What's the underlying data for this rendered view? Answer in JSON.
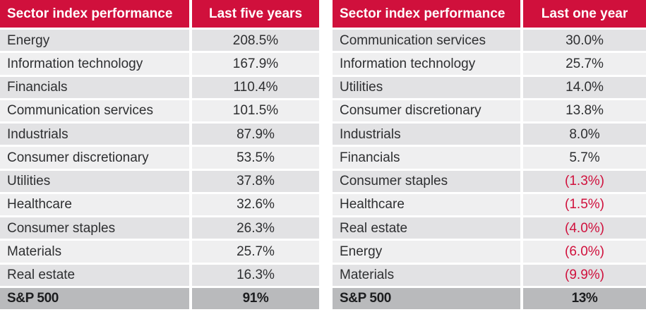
{
  "colors": {
    "header_red": "#d0103c",
    "negative_red": "#d0103c",
    "row_dark": "#e2e2e4",
    "row_light": "#efeff0",
    "footer_gray": "#b9babc",
    "text": "#2e2f31"
  },
  "tables": [
    {
      "id": "last-five-years",
      "header": {
        "label": "Sector index performance",
        "period": "Last five years"
      },
      "rows": [
        {
          "name": "Energy",
          "value": "208.5%"
        },
        {
          "name": "Information technology",
          "value": "167.9%"
        },
        {
          "name": "Financials",
          "value": "110.4%"
        },
        {
          "name": "Communication services",
          "value": "101.5%"
        },
        {
          "name": "Industrials",
          "value": "87.9%"
        },
        {
          "name": "Consumer discretionary",
          "value": "53.5%"
        },
        {
          "name": "Utilities",
          "value": "37.8%"
        },
        {
          "name": "Healthcare",
          "value": "32.6%"
        },
        {
          "name": "Consumer staples",
          "value": "26.3%"
        },
        {
          "name": "Materials",
          "value": "25.7%"
        },
        {
          "name": "Real estate",
          "value": "16.3%"
        }
      ],
      "footer": {
        "name": "S&P 500",
        "value": "91%"
      }
    },
    {
      "id": "last-one-year",
      "header": {
        "label": "Sector index performance",
        "period": "Last one year"
      },
      "rows": [
        {
          "name": "Communication services",
          "value": "30.0%"
        },
        {
          "name": "Information technology",
          "value": "25.7%"
        },
        {
          "name": "Utilities",
          "value": "14.0%"
        },
        {
          "name": "Consumer discretionary",
          "value": "13.8%"
        },
        {
          "name": "Industrials",
          "value": "8.0%"
        },
        {
          "name": "Financials",
          "value": "5.7%"
        },
        {
          "name": "Consumer staples",
          "value": "(1.3%)",
          "negative": true
        },
        {
          "name": "Healthcare",
          "value": "(1.5%)",
          "negative": true
        },
        {
          "name": "Real estate",
          "value": "(4.0%)",
          "negative": true
        },
        {
          "name": "Energy",
          "value": "(6.0%)",
          "negative": true
        },
        {
          "name": "Materials",
          "value": "(9.9%)",
          "negative": true
        }
      ],
      "footer": {
        "name": "S&P 500",
        "value": "13%"
      }
    }
  ],
  "chart_data": [
    {
      "type": "table",
      "title": "Sector index performance — Last five years",
      "columns": [
        "Sector index performance",
        "Last five years"
      ],
      "categories": [
        "Energy",
        "Information technology",
        "Financials",
        "Communication services",
        "Industrials",
        "Consumer discretionary",
        "Utilities",
        "Healthcare",
        "Consumer staples",
        "Materials",
        "Real estate",
        "S&P 500"
      ],
      "values_pct": [
        208.5,
        167.9,
        110.4,
        101.5,
        87.9,
        53.5,
        37.8,
        32.6,
        26.3,
        25.7,
        16.3,
        91
      ]
    },
    {
      "type": "table",
      "title": "Sector index performance — Last one year",
      "columns": [
        "Sector index performance",
        "Last one year"
      ],
      "categories": [
        "Communication services",
        "Information technology",
        "Utilities",
        "Consumer discretionary",
        "Industrials",
        "Financials",
        "Consumer staples",
        "Healthcare",
        "Real estate",
        "Energy",
        "Materials",
        "S&P 500"
      ],
      "values_pct": [
        30.0,
        25.7,
        14.0,
        13.8,
        8.0,
        5.7,
        -1.3,
        -1.5,
        -4.0,
        -6.0,
        -9.9,
        13
      ]
    }
  ]
}
